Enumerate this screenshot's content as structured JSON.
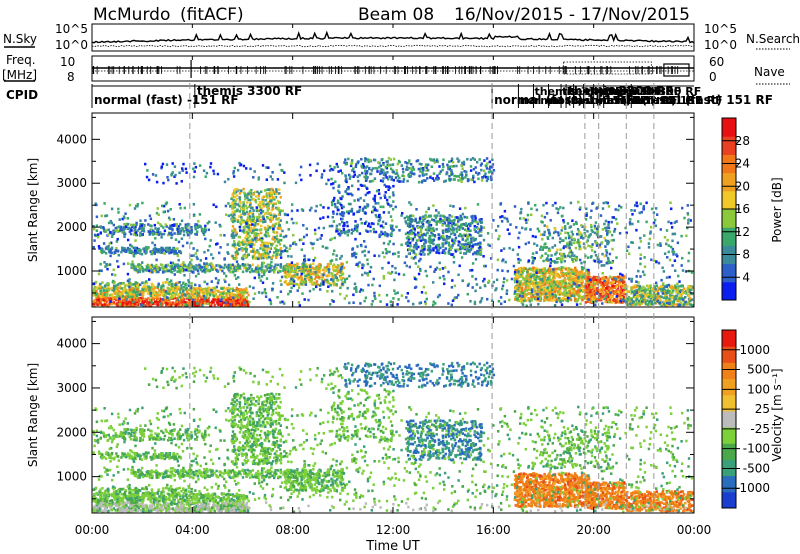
{
  "header": {
    "station": "McMurdo",
    "fit": "(fitACF)",
    "beam": "Beam 08",
    "dates": "16/Nov/2015 - 17/Nov/2015"
  },
  "aux_labels": {
    "nsky": "N.Sky",
    "nsearch": "N.Search",
    "freq": "Freq.",
    "freq_unit": "[MHz]",
    "nave": "Nave",
    "cpid": "CPID",
    "exp_1e5": "10^5",
    "exp_1e0": "10^0",
    "freq_top": "10",
    "freq_bot": "8",
    "nave_top": "60",
    "nave_bot": "0"
  },
  "cpid": {
    "labels": [
      {
        "text": "normal (fast) -151 RF",
        "hour": 0.0,
        "row": 1
      },
      {
        "text": "themis 3300 RF",
        "hour": 4.1,
        "row": 0
      },
      {
        "text": "normal (fast) 151 RF",
        "hour": 15.95,
        "row": 1
      },
      {
        "text": "themis 3300 RF",
        "hour": 18.9,
        "row": 0
      },
      {
        "text": "normal (fast) 151 RF",
        "hour": 21.5,
        "row": 1
      }
    ],
    "cluster_labels": [
      "normal (fast) 151 RF",
      "themis 3300 RF"
    ],
    "cluster_hours": [
      17.0,
      17.6,
      18.2,
      18.7,
      19.2,
      19.6,
      20.0,
      20.4
    ]
  },
  "chart_data": [
    {
      "type": "heatmap",
      "name": "Power",
      "ylabel": "Slant Range [km]",
      "yticks": [
        1000,
        2000,
        3000,
        4000
      ],
      "ylim": [
        180,
        4600
      ],
      "colorbar": {
        "label": "Power [dB]",
        "ticks": [
          "4",
          "8",
          "12",
          "16",
          "20",
          "24",
          "28"
        ],
        "colors": [
          "#0a1ef0",
          "#2c5fc8",
          "#3a8a9a",
          "#3aa86a",
          "#8cc83c",
          "#f0c828",
          "#f0a020",
          "#f07818",
          "#e84020",
          "#e81010"
        ]
      }
    },
    {
      "type": "heatmap",
      "name": "Velocity",
      "ylabel": "Slant Range [km]",
      "yticks": [
        1000,
        2000,
        3000,
        4000
      ],
      "ylim": [
        180,
        4600
      ],
      "colorbar": {
        "label": "Velocity [m s⁻¹]",
        "ticks": [
          "1000",
          "500",
          "100",
          "25",
          "-25",
          "-100",
          "-500",
          "-1000"
        ],
        "colors": [
          "#1a3ed0",
          "#2a6cbe",
          "#3aa07a",
          "#4aa84a",
          "#7cd03a",
          "#bcbcbc",
          "#f0c030",
          "#f0a020",
          "#f08018",
          "#e85018",
          "#e81a10"
        ]
      }
    }
  ],
  "xaxis": {
    "label": "Time UT",
    "ticks": [
      "00:00",
      "04:00",
      "08:00",
      "12:00",
      "16:00",
      "20:00",
      "00:00"
    ],
    "xlim": [
      0,
      24
    ]
  },
  "scan_lines": {
    "hours": [
      3.9,
      15.95,
      19.65,
      20.2,
      21.3,
      22.4
    ]
  }
}
